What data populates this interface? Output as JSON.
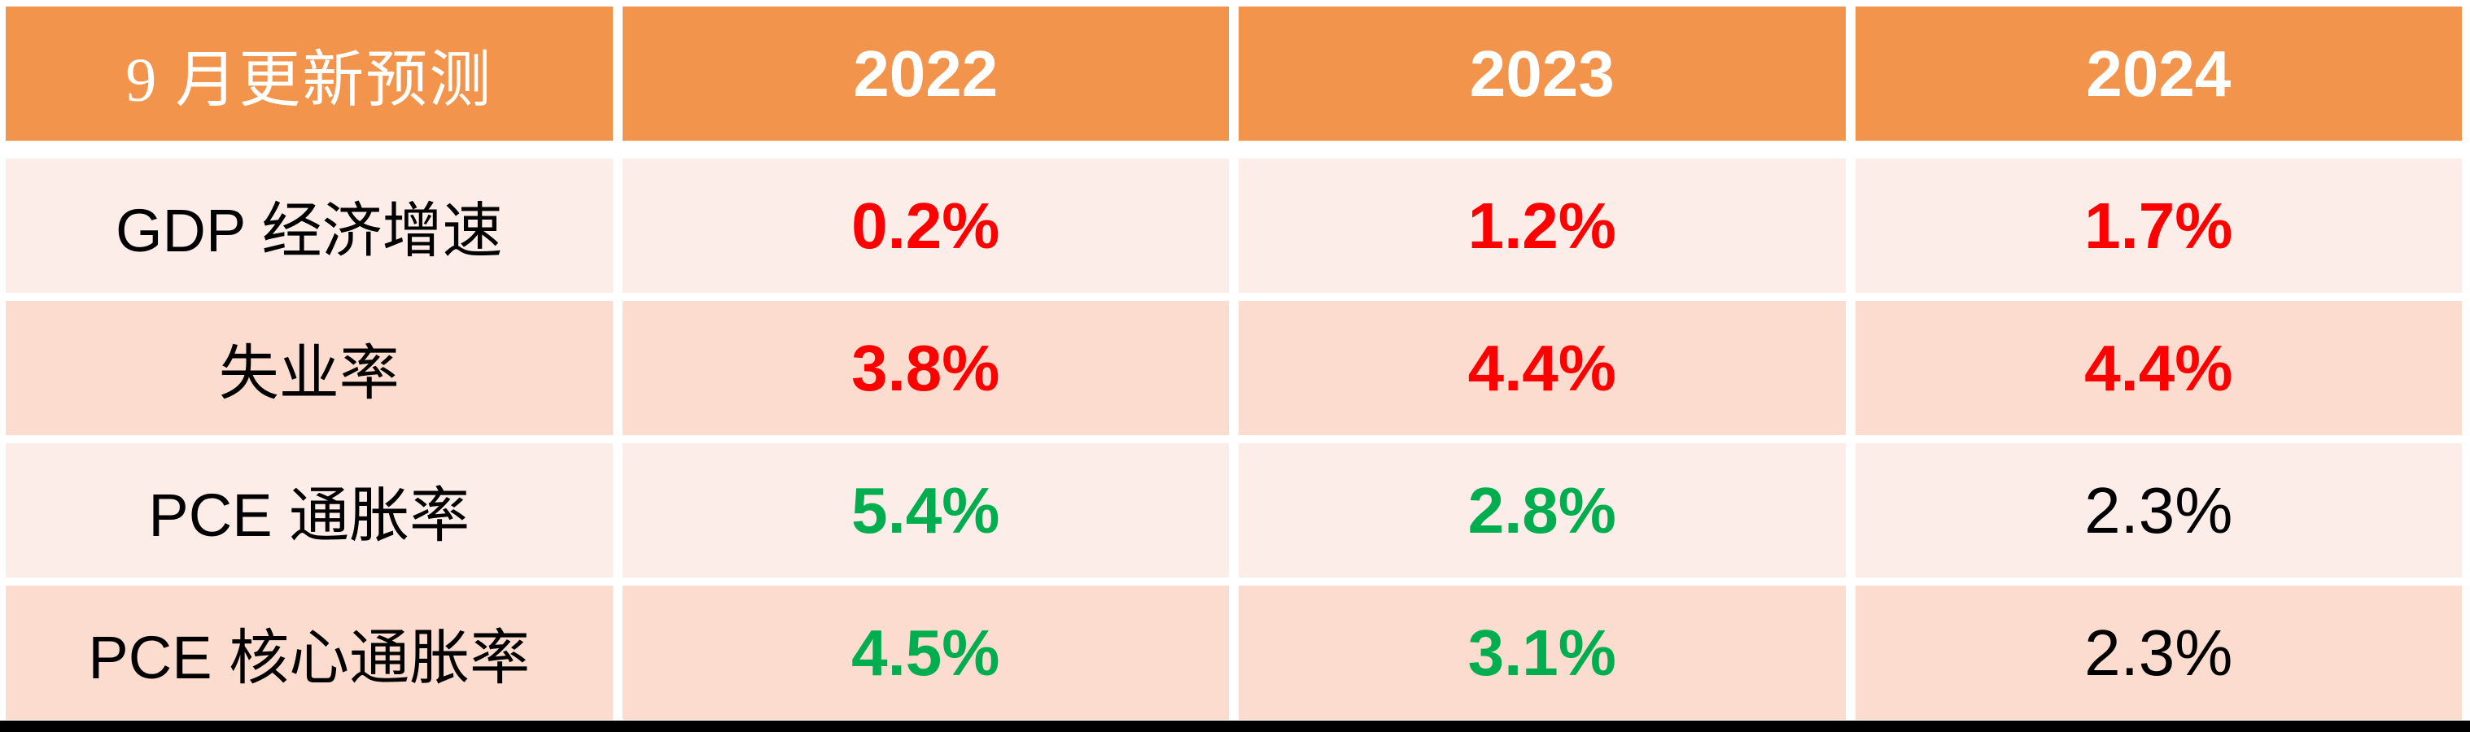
{
  "table": {
    "header": {
      "title": "9 月更新预测",
      "years": [
        "2022",
        "2023",
        "2024"
      ]
    },
    "rows": [
      {
        "label": "GDP 经济增速",
        "values": [
          {
            "text": "0.2%",
            "color": "red"
          },
          {
            "text": "1.2%",
            "color": "red"
          },
          {
            "text": "1.7%",
            "color": "red"
          }
        ]
      },
      {
        "label": "失业率",
        "values": [
          {
            "text": "3.8%",
            "color": "red"
          },
          {
            "text": "4.4%",
            "color": "red"
          },
          {
            "text": "4.4%",
            "color": "red"
          }
        ]
      },
      {
        "label": "PCE 通胀率",
        "values": [
          {
            "text": "5.4%",
            "color": "green"
          },
          {
            "text": "2.8%",
            "color": "green"
          },
          {
            "text": "2.3%",
            "color": "black"
          }
        ]
      },
      {
        "label": "PCE 核心通胀率",
        "values": [
          {
            "text": "4.5%",
            "color": "green"
          },
          {
            "text": "3.1%",
            "color": "green"
          },
          {
            "text": "2.3%",
            "color": "black"
          }
        ]
      }
    ]
  },
  "colors": {
    "header_bg": "#F3944D",
    "band_dark": "#FCDCCE",
    "band_light": "#FCEDE9",
    "red": "#FF0000",
    "green": "#00AD4F",
    "text_black": "#000000",
    "header_text": "#FFFFFF",
    "page_bg": "#FFFFFF",
    "bottom_bar": "#000000"
  },
  "chart_data": {
    "type": "table",
    "title": "9 月更新预测",
    "columns": [
      "9 月更新预测",
      "2022",
      "2023",
      "2024"
    ],
    "rows": [
      [
        "GDP 经济增速",
        "0.2%",
        "1.2%",
        "1.7%"
      ],
      [
        "失业率",
        "3.8%",
        "4.4%",
        "4.4%"
      ],
      [
        "PCE 通胀率",
        "5.4%",
        "2.8%",
        "2.3%"
      ],
      [
        "PCE 核心通胀率",
        "4.5%",
        "3.1%",
        "2.3%"
      ]
    ],
    "cell_text_colors": [
      [
        "black",
        "red",
        "red",
        "red"
      ],
      [
        "black",
        "red",
        "red",
        "red"
      ],
      [
        "black",
        "green",
        "green",
        "black"
      ],
      [
        "black",
        "green",
        "green",
        "black"
      ]
    ],
    "layout": {
      "header_fill": "#F3944D",
      "banded_row_fills": [
        "#FCDCCE",
        "#FCEDE9"
      ],
      "grid": "white gutters between cells",
      "bottom_black_bar": true
    }
  }
}
